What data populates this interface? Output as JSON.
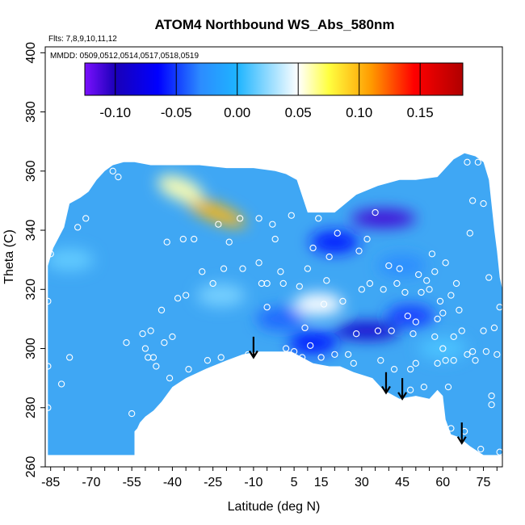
{
  "chart_data": {
    "type": "heatmap",
    "title": "ATOM4 Northbound WS_Abs_580nm",
    "annotations": [
      "Flts: 7,8,9,10,11,12",
      "MMDD: 0509,0512,0514,0517,0518,0519"
    ],
    "xlabel": "Latitude (deg N)",
    "ylabel": "Theta (C)",
    "xlim": [
      -87,
      82
    ],
    "ylim": [
      260,
      402
    ],
    "x_ticks": [
      -85,
      -70,
      -55,
      -40,
      -25,
      -10,
      5,
      15,
      30,
      45,
      60,
      75
    ],
    "x_tick_labels": [
      "-85",
      "-70",
      "-55",
      "-40",
      "-25",
      "-10",
      "5",
      "15",
      "30",
      "45",
      "60",
      "75"
    ],
    "y_ticks": [
      260,
      280,
      300,
      320,
      340,
      360,
      380,
      400
    ],
    "y_tick_labels": [
      "260",
      "280",
      "300",
      "320",
      "340",
      "360",
      "380",
      "400"
    ],
    "colorbar": {
      "ticks": [
        -0.1,
        -0.05,
        0.0,
        0.05,
        0.1,
        0.15
      ],
      "tick_labels": [
        "-0.10",
        "-0.05",
        "0.00",
        "0.05",
        "0.10",
        "0.15"
      ],
      "range": [
        -0.125,
        0.185
      ],
      "colors": [
        "#7b10ff",
        "#1a00b8",
        "#0000ff",
        "#2c8cff",
        "#1eb4ff",
        "#ffffff",
        "#ffff40",
        "#ff9a00",
        "#ff0000",
        "#b00000"
      ]
    },
    "base_color": "#3fa7f4",
    "features": [
      {
        "x": -24,
        "y": 346,
        "value": 0.1
      },
      {
        "x": -37,
        "y": 354,
        "value": 0.06
      },
      {
        "x": 14,
        "y": 315,
        "value": 0.05
      },
      {
        "x": 38,
        "y": 344,
        "value": -0.11
      },
      {
        "x": 20,
        "y": 336,
        "value": -0.06
      },
      {
        "x": 32,
        "y": 306,
        "value": -0.09
      },
      {
        "x": 12,
        "y": 302,
        "value": -0.06
      },
      {
        "x": 48,
        "y": 311,
        "value": -0.05
      },
      {
        "x": 45,
        "y": 328,
        "value": -0.03
      },
      {
        "x": 0,
        "y": 310,
        "value": -0.04
      },
      {
        "x": -22,
        "y": 318,
        "value": 0.02
      },
      {
        "x": -78,
        "y": 330,
        "value": 0.015
      },
      {
        "x": 60,
        "y": 300,
        "value": 0.01
      }
    ],
    "samples": [
      {
        "x": -85,
        "y": 332
      },
      {
        "x": -86,
        "y": 316
      },
      {
        "x": -86,
        "y": 294
      },
      {
        "x": -86,
        "y": 280
      },
      {
        "x": -81,
        "y": 288
      },
      {
        "x": -78,
        "y": 297
      },
      {
        "x": -75,
        "y": 341
      },
      {
        "x": -72,
        "y": 344
      },
      {
        "x": -62,
        "y": 360
      },
      {
        "x": -60,
        "y": 358
      },
      {
        "x": -57,
        "y": 302
      },
      {
        "x": -55,
        "y": 278
      },
      {
        "x": -51,
        "y": 305
      },
      {
        "x": -50,
        "y": 300
      },
      {
        "x": -49,
        "y": 297
      },
      {
        "x": -48,
        "y": 306
      },
      {
        "x": -47,
        "y": 297
      },
      {
        "x": -46,
        "y": 294
      },
      {
        "x": -45,
        "y": 279
      },
      {
        "x": -44,
        "y": 313
      },
      {
        "x": -43,
        "y": 302
      },
      {
        "x": -42,
        "y": 336
      },
      {
        "x": -41,
        "y": 290
      },
      {
        "x": -40,
        "y": 304
      },
      {
        "x": -38,
        "y": 317
      },
      {
        "x": -36,
        "y": 337
      },
      {
        "x": -35,
        "y": 318
      },
      {
        "x": -34,
        "y": 293
      },
      {
        "x": -32,
        "y": 337
      },
      {
        "x": -29,
        "y": 326
      },
      {
        "x": -27,
        "y": 296
      },
      {
        "x": -25,
        "y": 322
      },
      {
        "x": -23,
        "y": 342
      },
      {
        "x": -22,
        "y": 297
      },
      {
        "x": -21,
        "y": 327
      },
      {
        "x": -19,
        "y": 336
      },
      {
        "x": -15,
        "y": 344
      },
      {
        "x": -14,
        "y": 327
      },
      {
        "x": -12,
        "y": 298
      },
      {
        "x": -8,
        "y": 344
      },
      {
        "x": -8,
        "y": 329
      },
      {
        "x": -7,
        "y": 322
      },
      {
        "x": -5,
        "y": 322
      },
      {
        "x": -5,
        "y": 314
      },
      {
        "x": -3,
        "y": 342
      },
      {
        "x": -2,
        "y": 337
      },
      {
        "x": 0,
        "y": 326
      },
      {
        "x": 1,
        "y": 322
      },
      {
        "x": 2,
        "y": 300
      },
      {
        "x": 4,
        "y": 345
      },
      {
        "x": 5,
        "y": 299
      },
      {
        "x": 7,
        "y": 321
      },
      {
        "x": 8,
        "y": 297
      },
      {
        "x": 9,
        "y": 307
      },
      {
        "x": 10,
        "y": 327
      },
      {
        "x": 11,
        "y": 301
      },
      {
        "x": 12,
        "y": 334
      },
      {
        "x": 14,
        "y": 344
      },
      {
        "x": 15,
        "y": 297
      },
      {
        "x": 16,
        "y": 315
      },
      {
        "x": 17,
        "y": 323
      },
      {
        "x": 18,
        "y": 331
      },
      {
        "x": 20,
        "y": 298
      },
      {
        "x": 21,
        "y": 339
      },
      {
        "x": 23,
        "y": 316
      },
      {
        "x": 25,
        "y": 298
      },
      {
        "x": 27,
        "y": 295
      },
      {
        "x": 28,
        "y": 305
      },
      {
        "x": 29,
        "y": 333
      },
      {
        "x": 30,
        "y": 320
      },
      {
        "x": 32,
        "y": 337
      },
      {
        "x": 33,
        "y": 322
      },
      {
        "x": 35,
        "y": 346
      },
      {
        "x": 36,
        "y": 306
      },
      {
        "x": 37,
        "y": 296
      },
      {
        "x": 38,
        "y": 320
      },
      {
        "x": 40,
        "y": 328
      },
      {
        "x": 41,
        "y": 306
      },
      {
        "x": 42,
        "y": 293
      },
      {
        "x": 43,
        "y": 322
      },
      {
        "x": 44,
        "y": 327
      },
      {
        "x": 46,
        "y": 319
      },
      {
        "x": 47,
        "y": 311
      },
      {
        "x": 48,
        "y": 286
      },
      {
        "x": 49,
        "y": 305
      },
      {
        "x": 50,
        "y": 309
      },
      {
        "x": 51,
        "y": 325
      },
      {
        "x": 52,
        "y": 319
      },
      {
        "x": 53,
        "y": 287
      },
      {
        "x": 54,
        "y": 323
      },
      {
        "x": 55,
        "y": 320
      },
      {
        "x": 56,
        "y": 332
      },
      {
        "x": 57,
        "y": 304
      },
      {
        "x": 57,
        "y": 326
      },
      {
        "x": 58,
        "y": 310
      },
      {
        "x": 58,
        "y": 295
      },
      {
        "x": 59,
        "y": 316
      },
      {
        "x": 60,
        "y": 300
      },
      {
        "x": 60,
        "y": 312
      },
      {
        "x": 61,
        "y": 329
      },
      {
        "x": 61,
        "y": 296
      },
      {
        "x": 62,
        "y": 287
      },
      {
        "x": 63,
        "y": 273
      },
      {
        "x": 63,
        "y": 318
      },
      {
        "x": 64,
        "y": 304
      },
      {
        "x": 64,
        "y": 296
      },
      {
        "x": 65,
        "y": 322
      },
      {
        "x": 66,
        "y": 313
      },
      {
        "x": 67,
        "y": 306
      },
      {
        "x": 68,
        "y": 272
      },
      {
        "x": 69,
        "y": 363
      },
      {
        "x": 69,
        "y": 298
      },
      {
        "x": 70,
        "y": 339
      },
      {
        "x": 71,
        "y": 350
      },
      {
        "x": 71,
        "y": 299
      },
      {
        "x": 72,
        "y": 296
      },
      {
        "x": 73,
        "y": 363
      },
      {
        "x": 74,
        "y": 266
      },
      {
        "x": 75,
        "y": 349
      },
      {
        "x": 75,
        "y": 306
      },
      {
        "x": 76,
        "y": 299
      },
      {
        "x": 77,
        "y": 324
      },
      {
        "x": 78,
        "y": 281
      },
      {
        "x": 78,
        "y": 284
      },
      {
        "x": 79,
        "y": 307
      },
      {
        "x": 80,
        "y": 298
      },
      {
        "x": 81,
        "y": 265
      },
      {
        "x": 81,
        "y": 314
      },
      {
        "x": 48,
        "y": 293
      },
      {
        "x": 50,
        "y": 295
      }
    ],
    "arrows": [
      {
        "x": -10,
        "y_top": 304,
        "y_tip": 297
      },
      {
        "x": 39,
        "y_top": 292,
        "y_tip": 285
      },
      {
        "x": 45,
        "y_top": 290,
        "y_tip": 283
      },
      {
        "x": 67,
        "y_top": 275,
        "y_tip": 268
      }
    ],
    "domain_top": [
      [
        -86,
        328
      ],
      [
        -84,
        334
      ],
      [
        -80,
        341
      ],
      [
        -78,
        349
      ],
      [
        -74,
        351
      ],
      [
        -71,
        353
      ],
      [
        -68,
        357
      ],
      [
        -65,
        360
      ],
      [
        -62,
        362
      ],
      [
        -58,
        363
      ],
      [
        -54,
        363
      ],
      [
        -48,
        362
      ],
      [
        -40,
        362
      ],
      [
        -30,
        362
      ],
      [
        -20,
        361
      ],
      [
        -10,
        361
      ],
      [
        -2,
        360
      ],
      [
        2,
        359
      ],
      [
        6,
        357
      ],
      [
        10,
        346
      ],
      [
        20,
        346
      ],
      [
        28,
        352
      ],
      [
        36,
        355
      ],
      [
        44,
        357
      ],
      [
        50,
        357
      ],
      [
        58,
        358
      ],
      [
        64,
        364
      ],
      [
        68,
        366
      ],
      [
        72,
        365
      ],
      [
        75,
        363
      ],
      [
        77,
        357
      ],
      [
        79,
        340
      ],
      [
        80,
        333
      ],
      [
        81,
        324
      ],
      [
        82,
        320
      ]
    ],
    "domain_bottom": [
      [
        82,
        264
      ],
      [
        75,
        264
      ],
      [
        70,
        267
      ],
      [
        66,
        270
      ],
      [
        63,
        271
      ],
      [
        61,
        276
      ],
      [
        60,
        284
      ],
      [
        58,
        286
      ],
      [
        55,
        283
      ],
      [
        50,
        284
      ],
      [
        44,
        283
      ],
      [
        38,
        286
      ],
      [
        34,
        290
      ],
      [
        27,
        292
      ],
      [
        22,
        294
      ],
      [
        18,
        294
      ],
      [
        12,
        295
      ],
      [
        8,
        297
      ],
      [
        4,
        299
      ],
      [
        -2,
        299
      ],
      [
        -8,
        299
      ],
      [
        -14,
        298
      ],
      [
        -20,
        296
      ],
      [
        -28,
        293
      ],
      [
        -35,
        290
      ],
      [
        -40,
        287
      ],
      [
        -44,
        282
      ],
      [
        -47,
        279
      ],
      [
        -50,
        277
      ],
      [
        -52,
        275
      ],
      [
        -53,
        273
      ],
      [
        -54,
        272
      ],
      [
        -54,
        264
      ],
      [
        -86,
        264
      ]
    ]
  }
}
